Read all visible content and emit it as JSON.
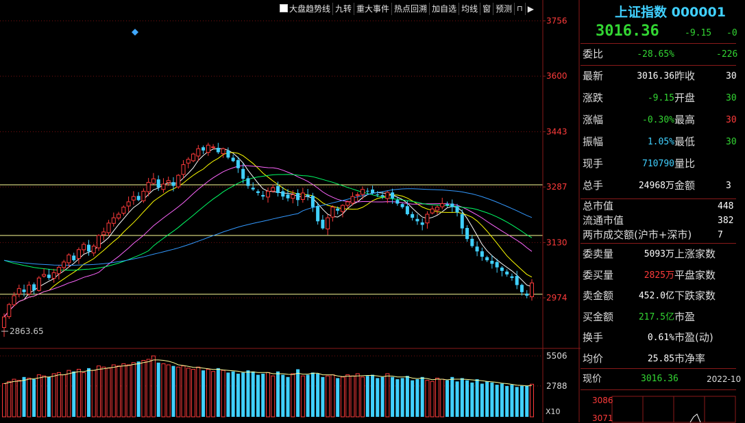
{
  "toolbar": {
    "items": [
      "大盘趋势线",
      "九转",
      "重大事件",
      "热点回溯",
      "加自选",
      "均线",
      "窗",
      "预测"
    ],
    "lock_glyph": "🔒",
    "arrow_glyph": "▶"
  },
  "chart_data": {
    "type": "candlestick",
    "y_ticks": [
      "3756",
      "3600",
      "3443",
      "3287",
      "3130",
      "2974"
    ],
    "y_tick_values": [
      3756,
      3600,
      3443,
      3287,
      3130,
      2974
    ],
    "ylim": [
      2835,
      3815
    ],
    "low_annotation": "2863.65",
    "low_value": 2863.65,
    "h_lines": [
      3293,
      3150,
      2984
    ],
    "volume_ticks": [
      "5506",
      "2788"
    ],
    "volume_unit": "X10",
    "volume_ylim": [
      0,
      6000
    ],
    "colors": {
      "up": "#ff3b3b",
      "down": "#40d0ff",
      "ma5": "#ffffff",
      "ma10": "#ffff00",
      "ma20": "#ff66ff",
      "ma30": "#00ff66",
      "ma60": "#3399ff"
    },
    "closes": [
      2920,
      2955,
      2980,
      3000,
      2990,
      3010,
      2995,
      3030,
      3040,
      3030,
      3045,
      3060,
      3075,
      3095,
      3080,
      3110,
      3125,
      3105,
      3120,
      3150,
      3160,
      3185,
      3200,
      3210,
      3230,
      3245,
      3260,
      3250,
      3275,
      3300,
      3310,
      3285,
      3295,
      3305,
      3290,
      3320,
      3350,
      3365,
      3380,
      3395,
      3390,
      3405,
      3400,
      3385,
      3395,
      3370,
      3360,
      3340,
      3310,
      3290,
      3280,
      3270,
      3260,
      3275,
      3285,
      3270,
      3260,
      3255,
      3265,
      3250,
      3270,
      3260,
      3230,
      3190,
      3170,
      3200,
      3230,
      3220,
      3235,
      3245,
      3260,
      3265,
      3280,
      3275,
      3270,
      3265,
      3260,
      3272,
      3255,
      3240,
      3230,
      3210,
      3200,
      3190,
      3180,
      3210,
      3225,
      3230,
      3240,
      3235,
      3230,
      3215,
      3170,
      3140,
      3120,
      3105,
      3090,
      3080,
      3070,
      3060,
      3050,
      3040,
      3030,
      3010,
      2990,
      2980,
      3016
    ],
    "volumes": [
      3000,
      3200,
      3400,
      3300,
      3600,
      3500,
      3400,
      3800,
      3700,
      3600,
      3900,
      4000,
      3800,
      4200,
      4100,
      4300,
      4000,
      4400,
      4200,
      4600,
      4500,
      4400,
      4700,
      4600,
      4800,
      4700,
      4900,
      5000,
      5100,
      5200,
      5506,
      4900,
      4800,
      4700,
      4600,
      4500,
      4600,
      4400,
      4300,
      4500,
      4200,
      4300,
      4100,
      4400,
      4200,
      4000,
      4100,
      3900,
      4000,
      4200,
      4100,
      3800,
      3900,
      4000,
      3700,
      4100,
      3800,
      3600,
      3900,
      4300,
      3700,
      3800,
      4000,
      3900,
      3600,
      3700,
      3800,
      3500,
      3600,
      3800,
      3700,
      3900,
      3600,
      3700,
      3800,
      3500,
      3600,
      3900,
      3600,
      3400,
      3500,
      3700,
      3300,
      3400,
      3600,
      3300,
      3200,
      3500,
      3400,
      3300,
      3600,
      3200,
      3500,
      3300,
      3100,
      3400,
      3000,
      3200,
      3100,
      2900,
      3000,
      2788,
      2900,
      2700,
      2800,
      2788,
      2950
    ]
  },
  "panel": {
    "title": "上证指数 000001",
    "price": "3016.36",
    "change": "-9.15",
    "change_pct": "-0",
    "weibi_label": "委比",
    "weibi_value": "-28.65%",
    "weibi_extra": "-226",
    "rows1": [
      {
        "l1": "最新",
        "v1": "3016.36",
        "c1": "white",
        "l2": "昨收",
        "v2": "30",
        "c2": "white"
      },
      {
        "l1": "涨跌",
        "v1": "-9.15",
        "c1": "green",
        "l2": "开盘",
        "v2": "30",
        "c2": "green"
      },
      {
        "l1": "涨幅",
        "v1": "-0.30%",
        "c1": "green",
        "l2": "最高",
        "v2": "30",
        "c2": "red"
      },
      {
        "l1": "振幅",
        "v1": "1.05%",
        "c1": "cyan",
        "l2": "最低",
        "v2": "30",
        "c2": "green"
      },
      {
        "l1": "现手",
        "v1": "710790",
        "c1": "cyan",
        "l2": "量比",
        "v2": "",
        "c2": "white"
      },
      {
        "l1": "总手",
        "v1": "24968万",
        "c1": "white",
        "l2": "金额",
        "v2": "3",
        "c2": "white"
      }
    ],
    "market": [
      {
        "l": "总市值",
        "v": "448"
      },
      {
        "l": "流通市值",
        "v": "382"
      },
      {
        "l": "两市成交额(沪市+深市)",
        "v": "7"
      }
    ],
    "rows2": [
      {
        "l1": "委卖量",
        "v1": "5093万",
        "c1": "white",
        "l2": "上涨家数"
      },
      {
        "l1": "委买量",
        "v1": "2825万",
        "c1": "red",
        "l2": "平盘家数"
      },
      {
        "l1": "卖金额",
        "v1": "452.0亿",
        "c1": "white",
        "l2": "下跌家数"
      },
      {
        "l1": "买金额",
        "v1": "217.5亿",
        "c1": "green",
        "l2": "市盈"
      },
      {
        "l1": "换手",
        "v1": "0.61%",
        "c1": "white",
        "l2": "市盈(动)"
      },
      {
        "l1": "均价",
        "v1": "25.85",
        "c1": "white",
        "l2": "市净率"
      }
    ],
    "bottom_label": "现价",
    "bottom_value": "3016.36",
    "bottom_date": "2022-10",
    "mini_ticks": [
      "3086",
      "3071"
    ]
  }
}
